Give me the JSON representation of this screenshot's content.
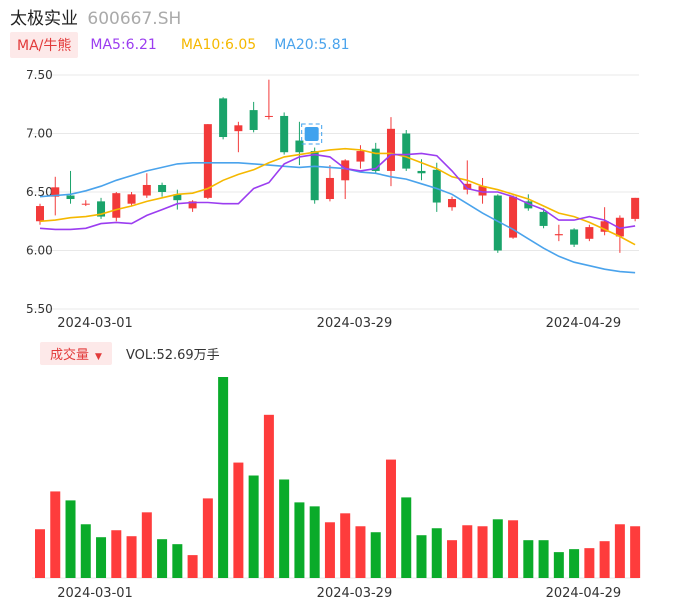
{
  "header": {
    "name": "太极实业",
    "code": "600667.SH"
  },
  "legend": {
    "ma_toggle": "MA/牛熊",
    "ma5": "MA5:6.21",
    "ma10": "MA10:6.05",
    "ma20": "MA20:5.81"
  },
  "volume_legend": {
    "toggle": "成交量",
    "caret": "▼",
    "vol": "VOL:52.69万手"
  },
  "colors": {
    "up": "#f23a3a",
    "down": "#1aa36a",
    "vol_up": "#fe3c3c",
    "vol_down": "#0aab2a",
    "ma5": "#9b3df0",
    "ma10": "#f5b800",
    "ma20": "#4aa3ec",
    "grid": "#e8e8e8"
  },
  "chart_data": [
    {
      "type": "candlestick",
      "ylim": [
        5.5,
        7.5
      ],
      "yticks": [
        "7.50",
        "7.00",
        "6.50",
        "6.00",
        "5.50"
      ],
      "xticks": [
        {
          "label": "2024-03-01",
          "index": 4
        },
        {
          "label": "2024-03-29",
          "index": 21
        },
        {
          "label": "2024-04-29",
          "index": 36
        }
      ],
      "grid": true,
      "candles": [
        {
          "o": 6.25,
          "c": 6.38,
          "h": 6.4,
          "l": 6.22
        },
        {
          "o": 6.46,
          "c": 6.54,
          "h": 6.63,
          "l": 6.3
        },
        {
          "o": 6.47,
          "c": 6.44,
          "h": 6.68,
          "l": 6.4
        },
        {
          "o": 6.4,
          "c": 6.4,
          "h": 6.43,
          "l": 6.38
        },
        {
          "o": 6.42,
          "c": 6.29,
          "h": 6.45,
          "l": 6.27
        },
        {
          "o": 6.28,
          "c": 6.49,
          "h": 6.5,
          "l": 6.25
        },
        {
          "o": 6.4,
          "c": 6.48,
          "h": 6.5,
          "l": 6.38
        },
        {
          "o": 6.47,
          "c": 6.56,
          "h": 6.66,
          "l": 6.45
        },
        {
          "o": 6.56,
          "c": 6.5,
          "h": 6.58,
          "l": 6.46
        },
        {
          "o": 6.48,
          "c": 6.43,
          "h": 6.52,
          "l": 6.35
        },
        {
          "o": 6.36,
          "c": 6.42,
          "h": 6.43,
          "l": 6.33
        },
        {
          "o": 6.45,
          "c": 7.08,
          "h": 7.08,
          "l": 6.44
        },
        {
          "o": 7.3,
          "c": 6.97,
          "h": 7.31,
          "l": 6.95
        },
        {
          "o": 7.02,
          "c": 7.07,
          "h": 7.1,
          "l": 6.84
        },
        {
          "o": 7.2,
          "c": 7.03,
          "h": 7.27,
          "l": 7.01
        },
        {
          "o": 7.15,
          "c": 7.15,
          "h": 7.46,
          "l": 7.12
        },
        {
          "o": 7.15,
          "c": 6.84,
          "h": 7.18,
          "l": 6.82
        },
        {
          "o": 6.94,
          "c": 6.84,
          "h": 7.1,
          "l": 6.73
        },
        {
          "o": 6.85,
          "c": 6.43,
          "h": 6.88,
          "l": 6.4
        },
        {
          "o": 6.44,
          "c": 6.62,
          "h": 6.73,
          "l": 6.42
        },
        {
          "o": 6.6,
          "c": 6.77,
          "h": 6.78,
          "l": 6.44
        },
        {
          "o": 6.76,
          "c": 6.85,
          "h": 6.9,
          "l": 6.7
        },
        {
          "o": 6.87,
          "c": 6.68,
          "h": 6.92,
          "l": 6.66
        },
        {
          "o": 6.68,
          "c": 7.04,
          "h": 7.14,
          "l": 6.55
        },
        {
          "o": 7.0,
          "c": 6.7,
          "h": 7.03,
          "l": 6.68
        },
        {
          "o": 6.68,
          "c": 6.66,
          "h": 6.78,
          "l": 6.6
        },
        {
          "o": 6.69,
          "c": 6.41,
          "h": 6.75,
          "l": 6.33
        },
        {
          "o": 6.37,
          "c": 6.44,
          "h": 6.46,
          "l": 6.34
        },
        {
          "o": 6.52,
          "c": 6.57,
          "h": 6.77,
          "l": 6.48
        },
        {
          "o": 6.47,
          "c": 6.55,
          "h": 6.62,
          "l": 6.4
        },
        {
          "o": 6.47,
          "c": 6.0,
          "h": 6.48,
          "l": 5.98
        },
        {
          "o": 6.11,
          "c": 6.46,
          "h": 6.47,
          "l": 6.1
        },
        {
          "o": 6.42,
          "c": 6.36,
          "h": 6.48,
          "l": 6.34
        },
        {
          "o": 6.33,
          "c": 6.21,
          "h": 6.36,
          "l": 6.19
        },
        {
          "o": 6.13,
          "c": 6.14,
          "h": 6.22,
          "l": 6.08
        },
        {
          "o": 6.18,
          "c": 6.05,
          "h": 6.19,
          "l": 6.03
        },
        {
          "o": 6.1,
          "c": 6.2,
          "h": 6.22,
          "l": 6.08
        },
        {
          "o": 6.16,
          "c": 6.25,
          "h": 6.37,
          "l": 6.13
        },
        {
          "o": 6.12,
          "c": 6.28,
          "h": 6.3,
          "l": 5.98
        },
        {
          "o": 6.27,
          "c": 6.45,
          "h": 6.45,
          "l": 6.25
        }
      ],
      "ma5": [
        6.19,
        6.18,
        6.18,
        6.19,
        6.23,
        6.24,
        6.23,
        6.3,
        6.35,
        6.4,
        6.41,
        6.41,
        6.4,
        6.4,
        6.53,
        6.58,
        6.74,
        6.8,
        6.82,
        6.8,
        6.7,
        6.68,
        6.7,
        6.82,
        6.82,
        6.83,
        6.81,
        6.68,
        6.53,
        6.5,
        6.5,
        6.46,
        6.4,
        6.35,
        6.26,
        6.26,
        6.29,
        6.26,
        6.19,
        6.21
      ],
      "ma10": [
        6.25,
        6.26,
        6.28,
        6.29,
        6.31,
        6.35,
        6.38,
        6.42,
        6.45,
        6.48,
        6.49,
        6.53,
        6.6,
        6.65,
        6.69,
        6.75,
        6.8,
        6.82,
        6.84,
        6.86,
        6.87,
        6.86,
        6.83,
        6.83,
        6.8,
        6.75,
        6.7,
        6.63,
        6.6,
        6.55,
        6.52,
        6.48,
        6.44,
        6.38,
        6.32,
        6.29,
        6.24,
        6.18,
        6.12,
        6.05
      ],
      "ma20": [
        6.46,
        6.47,
        6.48,
        6.51,
        6.55,
        6.6,
        6.64,
        6.68,
        6.71,
        6.74,
        6.75,
        6.75,
        6.75,
        6.75,
        6.74,
        6.73,
        6.72,
        6.71,
        6.72,
        6.71,
        6.7,
        6.67,
        6.66,
        6.63,
        6.61,
        6.57,
        6.53,
        6.48,
        6.4,
        6.32,
        6.25,
        6.18,
        6.1,
        6.02,
        5.95,
        5.9,
        5.87,
        5.84,
        5.82,
        5.81
      ]
    },
    {
      "type": "bar",
      "title": "",
      "xticks": [
        {
          "label": "2024-03-01",
          "index": 4
        },
        {
          "label": "2024-03-29",
          "index": 21
        },
        {
          "label": "2024-04-29",
          "index": 36
        }
      ],
      "ylim": [
        0,
        202
      ],
      "values": [
        49,
        87,
        78,
        54,
        41,
        48,
        42,
        66,
        39,
        34,
        23,
        80,
        202,
        116,
        103,
        164,
        99,
        76,
        72,
        56,
        65,
        52,
        46,
        119,
        81,
        43,
        50,
        38,
        53,
        52,
        59,
        58,
        38,
        38,
        26,
        29,
        30,
        37,
        54,
        52
      ],
      "direction": [
        "up",
        "up",
        "down",
        "down",
        "down",
        "up",
        "up",
        "up",
        "down",
        "down",
        "up",
        "up",
        "down",
        "up",
        "down",
        "up",
        "down",
        "down",
        "down",
        "up",
        "up",
        "up",
        "down",
        "up",
        "down",
        "down",
        "down",
        "up",
        "up",
        "up",
        "down",
        "up",
        "down",
        "down",
        "down",
        "down",
        "up",
        "up",
        "up",
        "up"
      ]
    }
  ]
}
